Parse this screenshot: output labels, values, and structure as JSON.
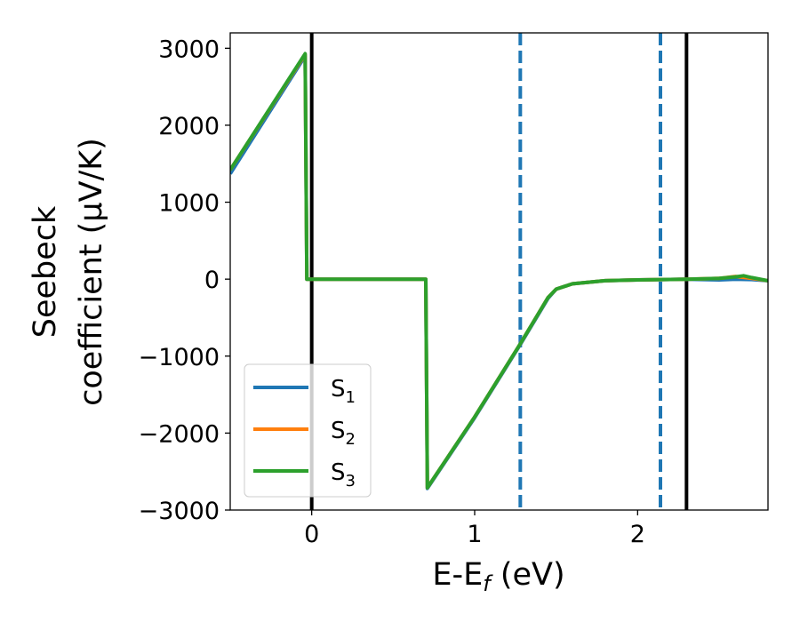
{
  "chart_data": {
    "type": "line",
    "title": "",
    "xlabel": {
      "main": "E-E",
      "sub": "f",
      "unit": " (eV)"
    },
    "ylabel": {
      "line1": "Seebeck",
      "line2": "coefficient  (μV/K)"
    },
    "xlim": [
      -0.5,
      2.8
    ],
    "ylim": [
      -3000,
      3200
    ],
    "xticks": [
      0,
      1,
      2
    ],
    "xtick_labels": [
      "0",
      "1",
      "2"
    ],
    "yticks": [
      -3000,
      -2000,
      -1000,
      0,
      1000,
      2000,
      3000
    ],
    "ytick_labels": [
      "−3000",
      "−2000",
      "−1000",
      "0",
      "1000",
      "2000",
      "3000"
    ],
    "grid": false,
    "legend_position": "lower-left",
    "vlines_solid": [
      0.0,
      2.3
    ],
    "vlines_dashed": [
      1.28,
      2.14
    ],
    "vline_solid_color": "#000000",
    "vline_dashed_color": "#1f77b4",
    "series": [
      {
        "name": "S",
        "name_sub": "1",
        "color": "#1f77b4",
        "x": [
          -0.5,
          -0.04,
          -0.03,
          0.7,
          0.71,
          1.0,
          1.28,
          1.45,
          1.5,
          1.6,
          1.8,
          2.0,
          2.3,
          2.5,
          2.6,
          2.7,
          2.8
        ],
        "y": [
          1370,
          2900,
          0,
          0,
          -2720,
          -1800,
          -850,
          -250,
          -130,
          -60,
          -20,
          -10,
          0,
          -10,
          0,
          -5,
          -20
        ]
      },
      {
        "name": "S",
        "name_sub": "2",
        "color": "#ff7f0e",
        "x": [
          -0.5,
          -0.04,
          -0.03,
          0.7,
          0.71,
          1.0,
          1.28,
          1.45,
          1.5,
          1.6,
          1.8,
          2.0,
          2.3,
          2.5,
          2.6,
          2.7,
          2.8
        ],
        "y": [
          1420,
          2920,
          0,
          0,
          -2710,
          -1790,
          -840,
          -240,
          -130,
          -60,
          -20,
          -10,
          0,
          10,
          35,
          10,
          -20
        ]
      },
      {
        "name": "S",
        "name_sub": "3",
        "color": "#2ca02c",
        "x": [
          -0.5,
          -0.04,
          -0.03,
          0.7,
          0.71,
          1.0,
          1.28,
          1.45,
          1.5,
          1.6,
          1.8,
          2.0,
          2.3,
          2.5,
          2.6,
          2.65,
          2.7,
          2.8
        ],
        "y": [
          1420,
          2930,
          0,
          0,
          -2710,
          -1790,
          -840,
          -240,
          -130,
          -60,
          -20,
          -10,
          0,
          10,
          30,
          45,
          20,
          -20
        ]
      }
    ]
  }
}
